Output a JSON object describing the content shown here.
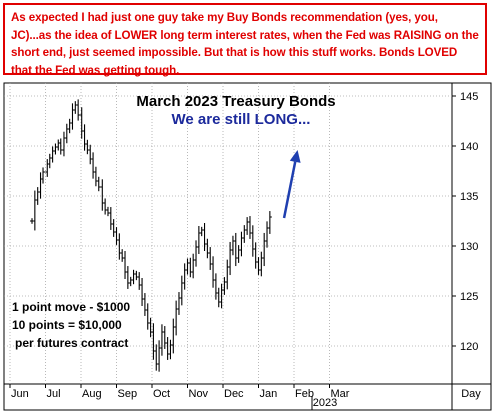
{
  "note": {
    "text": "As expected I had just one guy take my Buy Bonds recommendation (yes, you, JC)...as the idea of LOWER long term interest rates, when the Fed was RAISING on the short end, just seemed impossible. But that is how this stuff works. Bonds LOVED that the Fed was getting tough."
  },
  "colors": {
    "note": "#e00000",
    "subtitle": "#1c2a9c",
    "arrow": "#1f3fb0",
    "bars": "#000000"
  },
  "chart_data": {
    "type": "bar",
    "style": "ohlc",
    "title": "March 2023 Treasury Bonds",
    "subtitle": "We are still LONG...",
    "annotations": [
      "1 point move - $1000",
      "10 points = $10,000",
      "per futures contract"
    ],
    "x_ticks": [
      "Jun",
      "Jul",
      "Aug",
      "Sep",
      "Oct",
      "Nov",
      "Dec",
      "Jan",
      "Feb",
      "Mar",
      "Day"
    ],
    "x_sublabel": "2023",
    "y_ticks": [
      120,
      125,
      130,
      135,
      140,
      145
    ],
    "ylim": [
      116.2,
      146.3
    ],
    "grid": true,
    "y_axis_side": "right",
    "month_index_range": [
      0,
      10
    ],
    "arrow": {
      "from": [
        7.72,
        132.8
      ],
      "to": [
        8.1,
        139.6
      ]
    },
    "prices": [
      [
        0.62,
        132.5
      ],
      [
        0.7,
        134.6
      ],
      [
        0.78,
        135.4
      ],
      [
        0.86,
        136.7
      ],
      [
        0.93,
        137.4
      ],
      [
        1.05,
        138.2
      ],
      [
        1.12,
        138.8
      ],
      [
        1.2,
        139.5
      ],
      [
        1.28,
        139.9
      ],
      [
        1.36,
        140.3
      ],
      [
        1.43,
        139.6
      ],
      [
        1.52,
        140.8
      ],
      [
        1.6,
        141.7
      ],
      [
        1.68,
        142.3
      ],
      [
        1.76,
        143.6
      ],
      [
        1.84,
        144.1
      ],
      [
        1.92,
        143.1
      ],
      [
        2.02,
        141.5
      ],
      [
        2.1,
        140.2
      ],
      [
        2.18,
        139.6
      ],
      [
        2.26,
        138.7
      ],
      [
        2.34,
        137.4
      ],
      [
        2.42,
        136.5
      ],
      [
        2.5,
        135.9
      ],
      [
        2.6,
        134.3
      ],
      [
        2.68,
        133.6
      ],
      [
        2.76,
        133.3
      ],
      [
        2.84,
        132.2
      ],
      [
        2.92,
        131.4
      ],
      [
        3.0,
        130.6
      ],
      [
        3.08,
        129.3
      ],
      [
        3.16,
        128.8
      ],
      [
        3.24,
        127.4
      ],
      [
        3.32,
        126.3
      ],
      [
        3.4,
        126.6
      ],
      [
        3.48,
        127.2
      ],
      [
        3.56,
        126.9
      ],
      [
        3.64,
        126.1
      ],
      [
        3.72,
        124.7
      ],
      [
        3.8,
        123.6
      ],
      [
        3.88,
        122.3
      ],
      [
        3.96,
        121.4
      ],
      [
        4.04,
        119.5
      ],
      [
        4.12,
        118.2
      ],
      [
        4.2,
        119.8
      ],
      [
        4.28,
        121.4
      ],
      [
        4.36,
        120.3
      ],
      [
        4.44,
        119.2
      ],
      [
        4.52,
        120.1
      ],
      [
        4.6,
        121.9
      ],
      [
        4.68,
        123.7
      ],
      [
        4.76,
        124.8
      ],
      [
        4.84,
        126.3
      ],
      [
        4.92,
        127.6
      ],
      [
        5.0,
        128.3
      ],
      [
        5.08,
        127.4
      ],
      [
        5.16,
        128.6
      ],
      [
        5.24,
        129.9
      ],
      [
        5.32,
        131.3
      ],
      [
        5.4,
        131.6
      ],
      [
        5.48,
        130.2
      ],
      [
        5.56,
        129.3
      ],
      [
        5.64,
        128.2
      ],
      [
        5.72,
        126.6
      ],
      [
        5.8,
        125.3
      ],
      [
        5.88,
        124.4
      ],
      [
        5.96,
        125.6
      ],
      [
        6.04,
        126.4
      ],
      [
        6.12,
        127.9
      ],
      [
        6.2,
        129.6
      ],
      [
        6.28,
        130.5
      ],
      [
        6.36,
        128.8
      ],
      [
        6.44,
        129.6
      ],
      [
        6.52,
        130.8
      ],
      [
        6.6,
        131.6
      ],
      [
        6.68,
        132.4
      ],
      [
        6.76,
        131.3
      ],
      [
        6.84,
        129.7
      ],
      [
        6.92,
        128.4
      ],
      [
        7.0,
        127.6
      ],
      [
        7.08,
        128.8
      ],
      [
        7.16,
        130.5
      ],
      [
        7.24,
        131.8
      ],
      [
        7.32,
        132.9
      ]
    ]
  }
}
